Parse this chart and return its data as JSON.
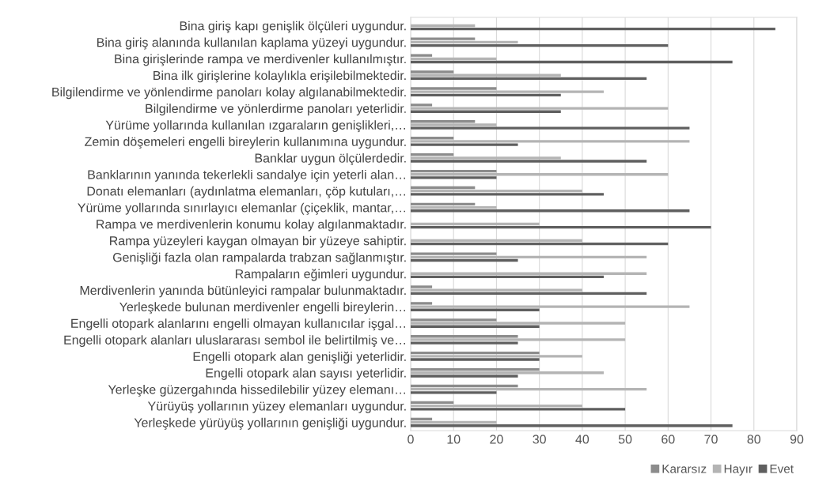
{
  "chart_data": {
    "type": "bar",
    "orientation": "horizontal",
    "categories": [
      "Bina giriş kapı genişlik ölçüleri uygundur.",
      "Bina giriş alanında kullanılan kaplama yüzeyi uygundur.",
      "Bina girişlerinde rampa ve merdivenler kullanılmıştır.",
      "Bina ilk girişlerine kolaylıkla erişilebilmektedir.",
      "Bilgilendirme ve yönlendirme panoları kolay algılanabilmektedir.",
      "Bilgilendirme ve yönlerdirme panoları yeterlidir.",
      "Yürüme yollarında kullanılan ızgaraların genişlikleri,…",
      "Zemin döşemeleri engelli bireylerin kullanımına uygundur.",
      "Banklar uygun ölçülerdedir.",
      "Banklarının yanında tekerlekli sandalye için yeterli alan…",
      "Donatı elemanları (aydınlatma elemanları, çöp kutuları,…",
      "Yürüme yollarında sınırlayıcı elemanlar (çiçeklik, mantar,…",
      "Rampa ve merdivenlerin konumu kolay algılanmaktadır.",
      "Rampa yüzeyleri kaygan olmayan bir yüzeye sahiptir.",
      "Genişliği fazla olan rampalarda trabzan sağlanmıştır.",
      "Rampaların eğimleri uygundur.",
      "Merdivenlerin yanında bütünleyici rampalar bulunmaktadır.",
      "Yerleşkede bulunan merdivenler engelli bireylerin…",
      "Engelli otopark alanlarını engelli olmayan kullanıcılar işgal…",
      "Engelli otopark alanları uluslararası sembol ile belirtilmiş ve…",
      "Engelli otopark alan genişliği yeterlidir.",
      "Engelli otopark alan sayısı yeterlidir.",
      "Yerleşke güzergahında hissedilebilir yüzey elemanı…",
      "Yürüyüş yollarının yüzey elemanları uygundur.",
      "Yerleşkede yürüyüş yollarının genişliği uygundur."
    ],
    "series": [
      {
        "name": "Kararsız",
        "color": "#8c8c8c",
        "values": [
          null,
          15,
          5,
          10,
          20,
          5,
          15,
          10,
          10,
          20,
          15,
          15,
          null,
          null,
          20,
          null,
          5,
          5,
          20,
          25,
          30,
          30,
          25,
          10,
          5
        ]
      },
      {
        "name": "Hayır",
        "color": "#b4b4b4",
        "values": [
          15,
          25,
          20,
          35,
          45,
          60,
          20,
          65,
          35,
          60,
          40,
          20,
          30,
          40,
          55,
          55,
          40,
          65,
          50,
          50,
          40,
          45,
          55,
          40,
          20
        ]
      },
      {
        "name": "Evet",
        "color": "#5f5f5f",
        "values": [
          85,
          60,
          75,
          55,
          35,
          35,
          65,
          25,
          55,
          20,
          45,
          65,
          70,
          60,
          25,
          45,
          55,
          30,
          30,
          25,
          30,
          25,
          20,
          50,
          75
        ]
      }
    ],
    "xlim": [
      0,
      90
    ],
    "xticks": [
      0,
      10,
      20,
      30,
      40,
      50,
      60,
      70,
      80,
      90
    ],
    "grid": "x",
    "legend": "bottom right"
  }
}
